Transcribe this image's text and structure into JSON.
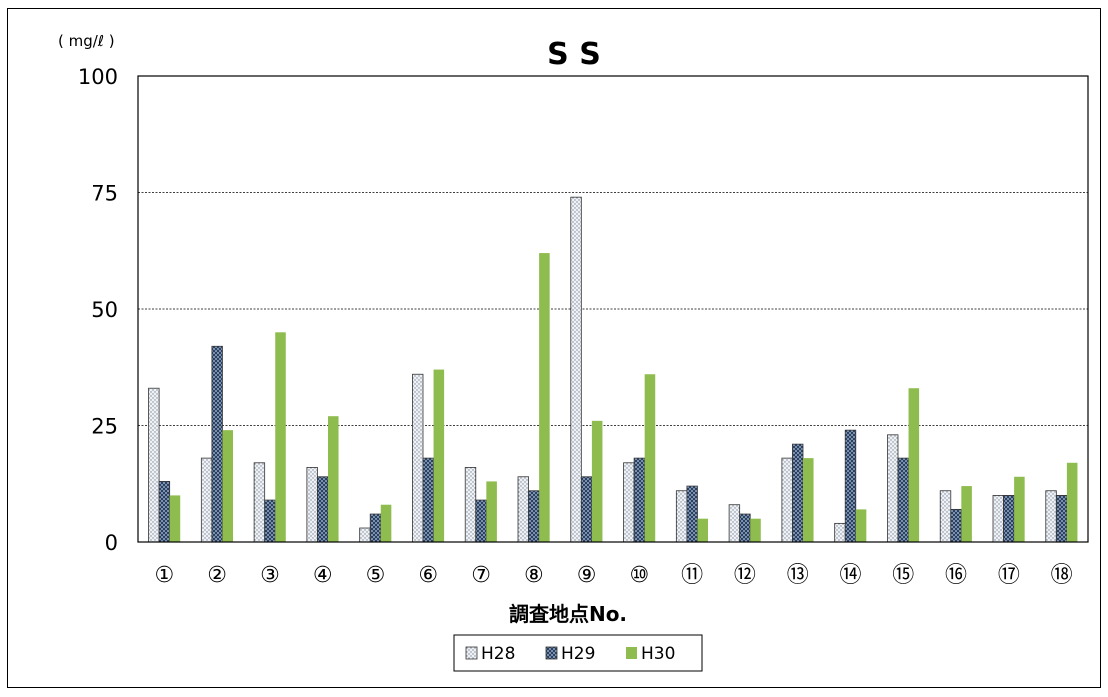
{
  "chart_data": {
    "type": "bar",
    "title": "S S",
    "unit_label": "( mg/ℓ )",
    "xlabel": "調査地点No.",
    "ylabel": "",
    "ylim": [
      0,
      100
    ],
    "yticks": [
      0,
      25,
      50,
      75,
      100
    ],
    "grid": true,
    "legend_position": "bottom",
    "categories": [
      "①",
      "②",
      "③",
      "④",
      "⑤",
      "⑥",
      "⑦",
      "⑧",
      "⑨",
      "⑩",
      "⑪",
      "⑫",
      "⑬",
      "⑭",
      "⑮",
      "⑯",
      "⑰",
      "⑱"
    ],
    "series": [
      {
        "name": "H28",
        "color": "#dde3ea",
        "pattern": "dots",
        "values": [
          33,
          18,
          17,
          16,
          3,
          36,
          16,
          14,
          74,
          17,
          11,
          8,
          18,
          4,
          23,
          11,
          10,
          11
        ]
      },
      {
        "name": "H29",
        "color": "#4a6a9a",
        "pattern": "crosshatch",
        "values": [
          13,
          42,
          9,
          14,
          6,
          18,
          9,
          11,
          14,
          18,
          12,
          6,
          21,
          24,
          18,
          7,
          10,
          10
        ]
      },
      {
        "name": "H30",
        "color": "#8fbc4f",
        "pattern": "solid",
        "values": [
          10,
          24,
          45,
          27,
          8,
          37,
          13,
          62,
          26,
          36,
          5,
          5,
          18,
          7,
          33,
          12,
          14,
          17
        ]
      }
    ]
  }
}
